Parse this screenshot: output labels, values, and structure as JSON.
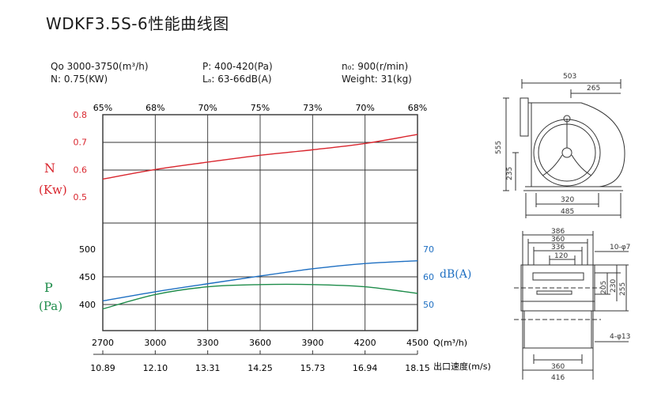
{
  "title": "WDKF3.5S-6性能曲线图",
  "specs": {
    "qo": "Qo  3000-3750(m³/h)",
    "n": "N:  0.75(KW)",
    "p": "P:  400-420(Pa)",
    "la": "Lₐ:  63-66dB(A)",
    "speed": "n₀:  900(r/min)",
    "weight": "Weight:  31(kg)"
  },
  "colors": {
    "power": "#d9262e",
    "pressure": "#1e8c4a",
    "noise": "#1e6fc2",
    "grid": "#333333"
  },
  "chart_data": {
    "type": "line",
    "title": "WDKF3.5S-6性能曲线图",
    "xlabel": "Q(m³/h)",
    "x2label": "出口速度(m/s)",
    "x": [
      2700,
      3000,
      3300,
      3600,
      3900,
      4200,
      4500
    ],
    "xlim": [
      2700,
      4500
    ],
    "velocity_ticks": [
      "10.89",
      "12.10",
      "13.31",
      "14.25",
      "15.73",
      "16.94",
      "18.15"
    ],
    "efficiency_ticks": [
      "65%",
      "68%",
      "70%",
      "75%",
      "73%",
      "70%",
      "68%"
    ],
    "left_axes": [
      {
        "label": "N",
        "unit": "(Kw)",
        "ticks": [
          "0.8",
          "0.7",
          "0.6",
          "0.5"
        ],
        "ylim": [
          0.5,
          0.8
        ]
      },
      {
        "label": "P",
        "unit": "(Pa)",
        "ticks": [
          "500",
          "450",
          "400"
        ],
        "ylim": [
          400,
          500
        ]
      }
    ],
    "right_axis": {
      "label": "dB(A)",
      "ticks": [
        "70",
        "60",
        "50"
      ],
      "ylim": [
        50,
        70
      ]
    },
    "series": [
      {
        "axis": "power",
        "x": [
          2700,
          3000,
          3300,
          3600,
          3900,
          4200,
          4500
        ],
        "values": [
          0.565,
          0.6,
          0.627,
          0.652,
          0.672,
          0.695,
          0.728
        ]
      },
      {
        "axis": "pressure",
        "x": [
          2700,
          3000,
          3300,
          3600,
          3900,
          4200,
          4500
        ],
        "values": [
          392,
          418,
          432,
          436,
          436,
          432,
          420
        ]
      },
      {
        "axis": "noise",
        "x": [
          2700,
          3000,
          3300,
          3600,
          3900,
          4200,
          4500
        ],
        "values": [
          51.3,
          54.6,
          57.5,
          60.3,
          62.9,
          64.8,
          65.8
        ]
      }
    ]
  },
  "drawing": {
    "side": {
      "overall_width": "503",
      "half_width": "265",
      "height": "555",
      "center_height": "235",
      "foot_inner": "320",
      "foot_outer": "485"
    },
    "front": {
      "d1": "386",
      "d2": "360",
      "d3": "336",
      "d4": "120",
      "h1": "205",
      "h2": "230",
      "h3": "255",
      "holes_top": "10-φ7",
      "holes_bottom": "4-φ13",
      "base_inner": "360",
      "base_outer": "416"
    }
  }
}
